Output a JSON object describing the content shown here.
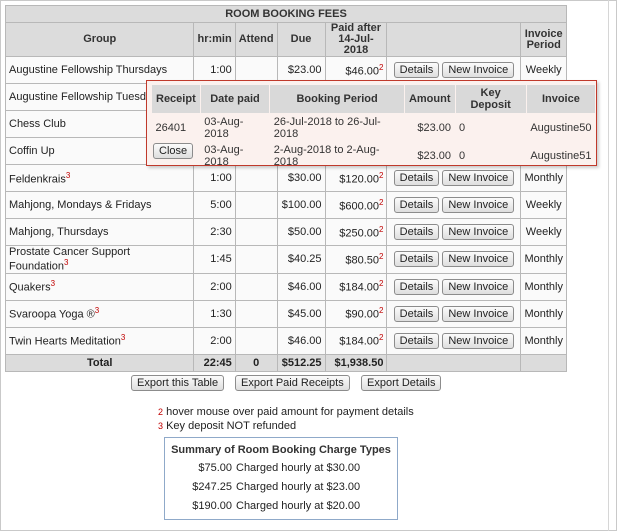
{
  "table_title": "ROOM BOOKING FEES",
  "headers": {
    "group": "Group",
    "hrmin": "hr:min",
    "attend": "Attend",
    "due": "Due",
    "paid_after_1": "Paid after",
    "paid_after_2": "14-Jul-2018",
    "invoice_period_1": "Invoice",
    "invoice_period_2": "Period"
  },
  "row_buttons": {
    "details": "Details",
    "new_invoice": "New Invoice"
  },
  "rows": [
    {
      "group": "Augustine Fellowship Thursdays",
      "sup": "",
      "hrmin": "1:00",
      "attend": "",
      "due": "$23.00",
      "paid": "$46.00",
      "paid_sup": "2",
      "period": "Weekly"
    },
    {
      "group": "Augustine Fellowship Tuesd",
      "sup": "",
      "hrmin": "",
      "attend": "",
      "due": "",
      "paid": "",
      "paid_sup": "",
      "period": ""
    },
    {
      "group": "Chess Club",
      "sup": "",
      "hrmin": "",
      "attend": "",
      "due": "",
      "paid": "",
      "paid_sup": "",
      "period": ""
    },
    {
      "group": "Coffin Up",
      "sup": "",
      "hrmin": "",
      "attend": "",
      "due": "",
      "paid": "",
      "paid_sup": "",
      "period": ""
    },
    {
      "group": "Feldenkrais",
      "sup": "3",
      "hrmin": "1:00",
      "attend": "",
      "due": "$30.00",
      "paid": "$120.00",
      "paid_sup": "2",
      "period": "Monthly"
    },
    {
      "group": "Mahjong, Mondays & Fridays",
      "sup": "",
      "hrmin": "5:00",
      "attend": "",
      "due": "$100.00",
      "paid": "$600.00",
      "paid_sup": "2",
      "period": "Weekly"
    },
    {
      "group": "Mahjong, Thursdays",
      "sup": "",
      "hrmin": "2:30",
      "attend": "",
      "due": "$50.00",
      "paid": "$250.00",
      "paid_sup": "2",
      "period": "Weekly"
    },
    {
      "group": "Prostate Cancer Support Foundation",
      "sup": "3",
      "hrmin": "1:45",
      "attend": "",
      "due": "$40.25",
      "paid": "$80.50",
      "paid_sup": "2",
      "period": "Monthly"
    },
    {
      "group": "Quakers",
      "sup": "3",
      "hrmin": "2:00",
      "attend": "",
      "due": "$46.00",
      "paid": "$184.00",
      "paid_sup": "2",
      "period": "Monthly"
    },
    {
      "group": "Svaroopa Yoga ®",
      "sup": "3",
      "hrmin": "1:30",
      "attend": "",
      "due": "$45.00",
      "paid": "$90.00",
      "paid_sup": "2",
      "period": "Monthly"
    },
    {
      "group": "Twin Hearts Meditation",
      "sup": "3",
      "hrmin": "2:00",
      "attend": "",
      "due": "$46.00",
      "paid": "$184.00",
      "paid_sup": "2",
      "period": "Monthly"
    }
  ],
  "total": {
    "label": "Total",
    "hrmin": "22:45",
    "attend": "0",
    "due": "$512.25",
    "paid": "$1,938.50"
  },
  "popup": {
    "headers": [
      "Receipt",
      "Date paid",
      "Booking Period",
      "Amount",
      "Key Deposit",
      "Invoice"
    ],
    "rows": [
      [
        "26401",
        "03-Aug-2018",
        "26-Jul-2018 to 26-Jul-2018",
        "$23.00",
        "0",
        "Augustine50"
      ],
      [
        "26402",
        "03-Aug-2018",
        "2-Aug-2018 to 2-Aug-2018",
        "$23.00",
        "0",
        "Augustine51"
      ]
    ],
    "close_label": "Close"
  },
  "export_buttons": [
    "Export this Table",
    "Export Paid Receipts",
    "Export Details"
  ],
  "notes": [
    {
      "num": "2",
      "text": "hover mouse over paid amount for payment details"
    },
    {
      "num": "3",
      "text": "Key deposit NOT refunded"
    }
  ],
  "summary": {
    "title": "Summary of Room Booking Charge Types",
    "rows": [
      {
        "amount": "$75.00",
        "desc": "Charged hourly at $30.00"
      },
      {
        "amount": "$247.25",
        "desc": "Charged hourly at $23.00"
      },
      {
        "amount": "$190.00",
        "desc": "Charged hourly at $20.00"
      }
    ]
  }
}
